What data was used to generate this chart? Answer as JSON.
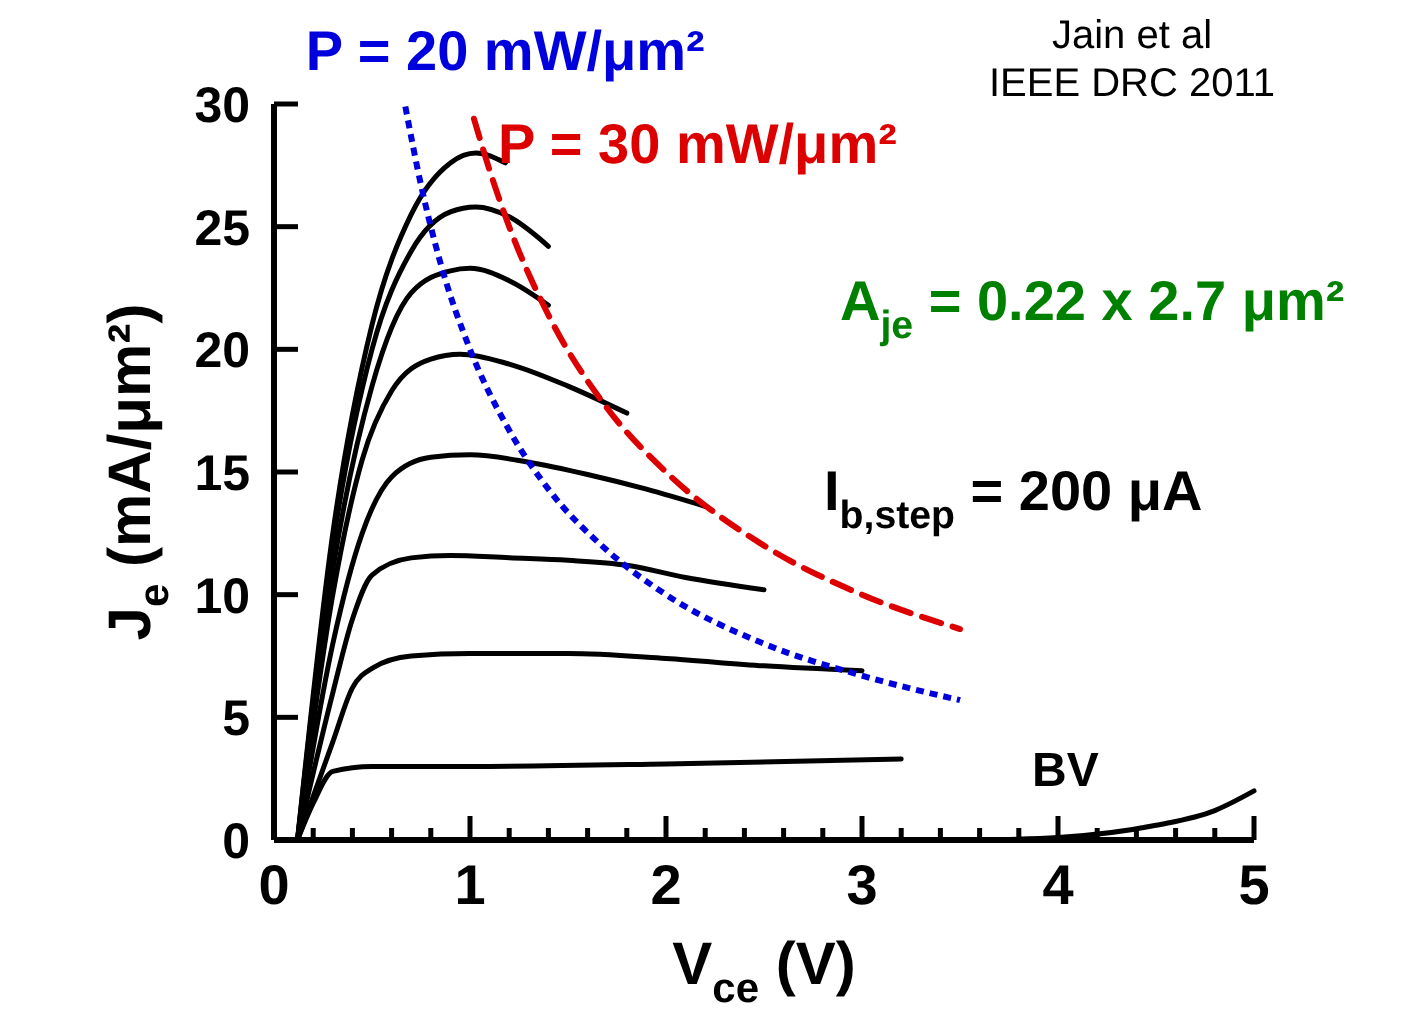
{
  "chart_data": {
    "type": "line",
    "xlabel": "V$_{ce}$ (V)",
    "ylabel": "J$_{e}$ (mA/μm²)",
    "xlim": [
      0,
      5
    ],
    "ylim": [
      0,
      30
    ],
    "xticks": [
      0,
      {
        "value": 0.2,
        "label": null
      },
      {
        "value": 0.4,
        "label": null
      },
      {
        "value": 0.6,
        "label": null
      },
      {
        "value": 0.8,
        "label": null
      },
      1,
      {
        "value": 1.2,
        "label": null
      },
      {
        "value": 1.4,
        "label": null
      },
      {
        "value": 1.6,
        "label": null
      },
      {
        "value": 1.8,
        "label": null
      },
      2,
      {
        "value": 2.2,
        "label": null
      },
      {
        "value": 2.4,
        "label": null
      },
      {
        "value": 2.6,
        "label": null
      },
      {
        "value": 2.8,
        "label": null
      },
      3,
      {
        "value": 3.2,
        "label": null
      },
      {
        "value": 3.4,
        "label": null
      },
      {
        "value": 3.6,
        "label": null
      },
      {
        "value": 3.8,
        "label": null
      },
      4,
      {
        "value": 4.2,
        "label": null
      },
      {
        "value": 4.4,
        "label": null
      },
      {
        "value": 4.6,
        "label": null
      },
      {
        "value": 4.8,
        "label": null
      },
      5
    ],
    "yticks": [
      0,
      5,
      10,
      15,
      20,
      25,
      30
    ],
    "grid": false,
    "marker": "none",
    "line_style": "solid",
    "series": [
      {
        "color": "#000000",
        "x": [
          0.12,
          0.2,
          0.3,
          0.5,
          1,
          2,
          3.2
        ],
        "values": [
          0,
          1.5,
          2.8,
          3.0,
          3.0,
          3.1,
          3.3
        ]
      },
      {
        "color": "#000000",
        "x": [
          0.12,
          0.3,
          0.4,
          0.5,
          0.7,
          1,
          1.5,
          2,
          2.5,
          3
        ],
        "values": [
          0,
          4,
          6.2,
          7.0,
          7.5,
          7.6,
          7.6,
          7.4,
          7.1,
          6.9
        ]
      },
      {
        "color": "#000000",
        "x": [
          0.12,
          0.3,
          0.4,
          0.5,
          0.7,
          0.9,
          1.2,
          1.5,
          1.8,
          2.1,
          2.5
        ],
        "values": [
          0,
          6,
          9,
          10.8,
          11.5,
          11.6,
          11.5,
          11.4,
          11.2,
          10.7,
          10.2
        ]
      },
      {
        "color": "#000000",
        "x": [
          0.12,
          0.3,
          0.45,
          0.6,
          0.8,
          1,
          1.3,
          1.6,
          1.9,
          2.2
        ],
        "values": [
          0,
          8,
          12.5,
          14.8,
          15.6,
          15.7,
          15.4,
          14.9,
          14.3,
          13.6
        ]
      },
      {
        "color": "#000000",
        "x": [
          0.12,
          0.3,
          0.45,
          0.6,
          0.8,
          0.95,
          1.2,
          1.5,
          1.8
        ],
        "values": [
          0,
          10,
          15.5,
          18.3,
          19.6,
          19.8,
          19.4,
          18.5,
          17.4
        ]
      },
      {
        "color": "#000000",
        "x": [
          0.12,
          0.3,
          0.5,
          0.7,
          0.9,
          1,
          1.2,
          1.4
        ],
        "values": [
          0,
          11,
          18.5,
          22.3,
          23.2,
          23.3,
          22.8,
          21.8
        ]
      },
      {
        "color": "#000000",
        "x": [
          0.12,
          0.3,
          0.5,
          0.7,
          0.9,
          1.03,
          1.2,
          1.4
        ],
        "values": [
          0,
          12,
          20,
          24,
          25.6,
          25.8,
          25.4,
          24.2
        ]
      },
      {
        "color": "#000000",
        "x": [
          0.12,
          0.3,
          0.5,
          0.7,
          0.9,
          1.03,
          1.18
        ],
        "values": [
          0,
          12.5,
          21,
          25.5,
          27.6,
          28,
          27.6
        ]
      },
      {
        "color": "#000000",
        "x": [
          3.6,
          4,
          4.5,
          4.8,
          5
        ],
        "values": [
          0,
          0.1,
          0.6,
          1.2,
          2.0
        ]
      },
      {
        "name": "P = 20 mW/μm²",
        "color": "#0000dd",
        "line_style": "dotted",
        "x": [
          0.67,
          0.75,
          0.85,
          1,
          1.2,
          1.4,
          1.7,
          2,
          2.5,
          3,
          3.5
        ],
        "values": [
          29.9,
          26.7,
          23.5,
          20,
          16.7,
          14.3,
          11.8,
          10,
          8,
          6.7,
          5.7
        ]
      },
      {
        "name": "P = 30 mW/μm²",
        "color": "#dd0000",
        "line_style": "dashed",
        "x": [
          1.02,
          1.1,
          1.2,
          1.4,
          1.7,
          2,
          2.5,
          3,
          3.5
        ],
        "values": [
          29.4,
          27.3,
          25,
          21.4,
          17.6,
          15,
          12,
          10,
          8.6
        ]
      }
    ],
    "annotations": [
      "A$_{je}$ = 0.22 x 2.7 μm²",
      "I$_{b,step}$ = 200 μA",
      "BV",
      "Jain et al\nIEEE DRC 2011"
    ]
  }
}
